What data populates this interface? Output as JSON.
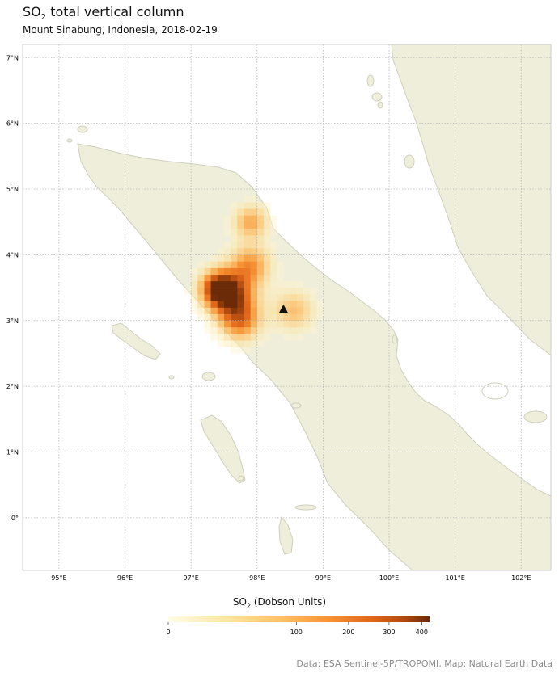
{
  "title": {
    "prefix": "SO",
    "sub": "2",
    "suffix": " total vertical column"
  },
  "subtitle": "Mount Sinabung, Indonesia, 2018-02-19",
  "map": {
    "lon_ticks": [
      "95°E",
      "96°E",
      "97°E",
      "98°E",
      "99°E",
      "100°E",
      "101°E",
      "102°E"
    ],
    "lat_ticks": [
      "7°N",
      "6°N",
      "5°N",
      "4°N",
      "3°N",
      "2°N",
      "1°N",
      "0°"
    ],
    "lon_range": [
      94.45,
      102.45
    ],
    "lat_range": [
      -0.8,
      7.2
    ],
    "volcano": {
      "name": "Mount Sinabung",
      "lon": 98.4,
      "lat": 3.17,
      "icon": "triangle-marker-icon"
    },
    "colors": {
      "land": "#efeedb",
      "coast": "#cfcfbe",
      "grid": "#b4b4b4",
      "frame": "#cccccc"
    }
  },
  "colorbar": {
    "label_prefix": "SO",
    "label_sub": "2",
    "label_suffix": " (Dobson Units)",
    "ticks": [
      "0",
      "100",
      "200",
      "300",
      "400"
    ],
    "tick_values": [
      0,
      100,
      200,
      300,
      400
    ],
    "colors": [
      "#fffce6",
      "#fee6a3",
      "#fdbd60",
      "#f79132",
      "#e0661a",
      "#b24b0f",
      "#6b2a08"
    ]
  },
  "credit": "Data: ESA Sentinel-5P/TROPOMI, Map: Natural Earth Data"
}
